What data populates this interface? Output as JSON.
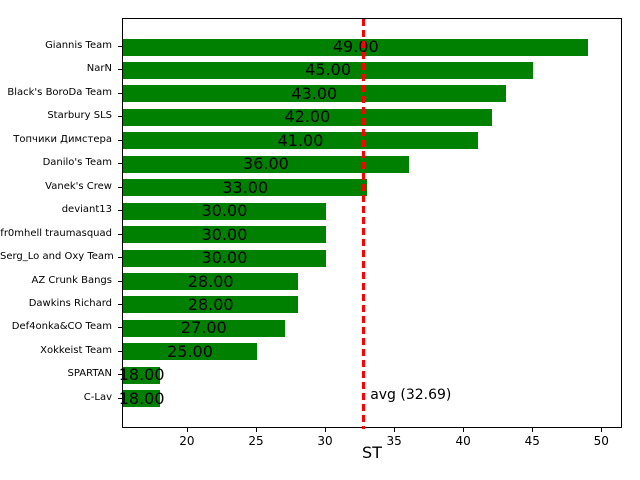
{
  "chart_data": {
    "type": "bar",
    "orientation": "horizontal",
    "xlabel": "ST",
    "ylabel": "",
    "categories": [
      "Giannis Team",
      "NarN",
      "Black's BoroDa Team",
      "Starbury SLS",
      "Топчики Димстера",
      "Danilo's Team",
      "Vanek's Crew",
      "deviant13",
      "fr0mhell traumasquad",
      "Serg_Lo and Oxy Team",
      "AZ Crunk Bangs",
      "Dawkins Richard",
      "Def4onka&CO Team",
      "Xokkeist Team",
      "SPARTAN",
      "C-Lav"
    ],
    "values": [
      49,
      45,
      43,
      42,
      41,
      36,
      33,
      30,
      30,
      30,
      28,
      28,
      27,
      25,
      18,
      18
    ],
    "value_labels": [
      "49.00",
      "45.00",
      "43.00",
      "42.00",
      "41.00",
      "36.00",
      "33.00",
      "30.00",
      "30.00",
      "30.00",
      "28.00",
      "28.00",
      "27.00",
      "25.00",
      "18.00",
      "18.00"
    ],
    "xticks": [
      20,
      25,
      30,
      35,
      40,
      45,
      50
    ],
    "xlim": [
      15.3,
      51.5
    ],
    "grid": false,
    "bar_color": "#008000",
    "value_label_color": "#000000",
    "avg_line": {
      "value": 32.69,
      "label": "avg (32.69)",
      "color": "#ff0000",
      "style": "dashed"
    }
  }
}
